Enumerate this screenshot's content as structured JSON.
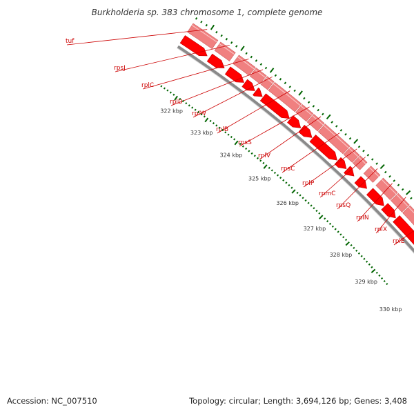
{
  "title": "Burkholderia sp. 383 chromosome 1, complete genome",
  "footer": {
    "accession": "Accession: NC_007510",
    "topology": "Topology: circular; Length: 3,694,126 bp; Genes: 3,408"
  },
  "colors": {
    "cds": "#ff0000",
    "cds_dark": "#c00000",
    "gene_band": "#f08080",
    "gene_band_edge": "#d06060",
    "backbone": "#8a8a8a",
    "label": "#cc0000",
    "tick": "#006400"
  },
  "genes": [
    {
      "name": "tuf"
    },
    {
      "name": "rpsJ"
    },
    {
      "name": "rplC"
    },
    {
      "name": "rplD"
    },
    {
      "name": "rplW"
    },
    {
      "name": "rplB"
    },
    {
      "name": "rpsS"
    },
    {
      "name": "rplV"
    },
    {
      "name": "rpsC"
    },
    {
      "name": "rplP"
    },
    {
      "name": "rpmC"
    },
    {
      "name": "rpsQ"
    },
    {
      "name": "rplN"
    },
    {
      "name": "rplX"
    },
    {
      "name": "rplE"
    }
  ],
  "ruler": [
    "322 kbp",
    "323 kbp",
    "324 kbp",
    "325 kbp",
    "326 kbp",
    "327 kbp",
    "328 kbp",
    "329 kbp",
    "330 kbp"
  ]
}
